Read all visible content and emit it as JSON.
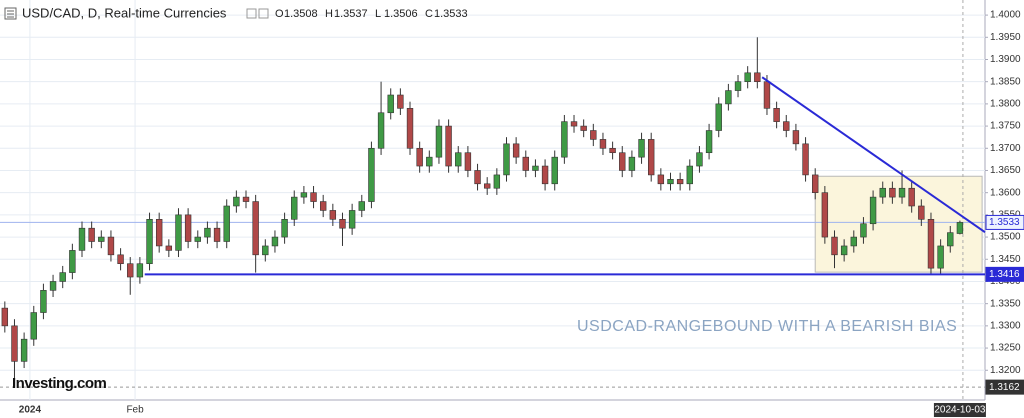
{
  "chart_data": {
    "type": "candlestick",
    "title": "USD/CAD, D, Real-time Currencies",
    "ohlc_labels": [
      "O",
      "H",
      "L",
      "C"
    ],
    "annotation": "USDCAD-RANGEBOUND WITH A BEARISH BIAS",
    "logo": "Investing.com",
    "last_date": "2024-10-03",
    "up_color": "#3f9a45",
    "down_color": "#b04848",
    "open": [
      1.334,
      1.33,
      1.322,
      1.327,
      1.333,
      1.338,
      1.34,
      1.342,
      1.347,
      1.352,
      1.349,
      1.35,
      1.346,
      1.344,
      1.341,
      1.344,
      1.354,
      1.348,
      1.347,
      1.355,
      1.349,
      1.35,
      1.352,
      1.349,
      1.357,
      1.359,
      1.358,
      1.346,
      1.348,
      1.35,
      1.354,
      1.359,
      1.36,
      1.358,
      1.356,
      1.354,
      1.352,
      1.356,
      1.358,
      1.37,
      1.378,
      1.382,
      1.379,
      1.37,
      1.366,
      1.368,
      1.375,
      1.366,
      1.369,
      1.365,
      1.362,
      1.361,
      1.364,
      1.371,
      1.368,
      1.365,
      1.366,
      1.362,
      1.368,
      1.376,
      1.375,
      1.374,
      1.372,
      1.37,
      1.369,
      1.365,
      1.368,
      1.372,
      1.364,
      1.362,
      1.363,
      1.362,
      1.366,
      1.369,
      1.374,
      1.38,
      1.383,
      1.385,
      1.387,
      1.385,
      1.379,
      1.376,
      1.374,
      1.371,
      1.364,
      1.36,
      1.35,
      1.346,
      1.348,
      1.35,
      1.353,
      1.359,
      1.361,
      1.359,
      1.361,
      1.357,
      1.354,
      1.343,
      1.348,
      1.3508
    ],
    "high": [
      1.3355,
      1.3315,
      1.3285,
      1.3345,
      1.3395,
      1.3415,
      1.3435,
      1.3485,
      1.3535,
      1.3535,
      1.3515,
      1.3515,
      1.3475,
      1.3455,
      1.3455,
      1.3555,
      1.3555,
      1.3495,
      1.3565,
      1.3565,
      1.3515,
      1.3535,
      1.3535,
      1.3585,
      1.3605,
      1.3605,
      1.3595,
      1.3495,
      1.3515,
      1.3555,
      1.3605,
      1.3615,
      1.3615,
      1.3595,
      1.3575,
      1.3555,
      1.3575,
      1.3595,
      1.3715,
      1.385,
      1.3835,
      1.3835,
      1.3805,
      1.3715,
      1.3695,
      1.3765,
      1.3765,
      1.3705,
      1.3705,
      1.3665,
      1.3635,
      1.3655,
      1.3725,
      1.3725,
      1.3695,
      1.3675,
      1.3675,
      1.3695,
      1.3775,
      1.3775,
      1.3765,
      1.3755,
      1.3735,
      1.3715,
      1.3705,
      1.3695,
      1.3735,
      1.3735,
      1.3655,
      1.3645,
      1.3645,
      1.3675,
      1.3705,
      1.3755,
      1.3815,
      1.3845,
      1.3865,
      1.3885,
      1.395,
      1.3865,
      1.3805,
      1.3775,
      1.3755,
      1.3725,
      1.3655,
      1.3615,
      1.3515,
      1.3495,
      1.3515,
      1.3545,
      1.3605,
      1.3625,
      1.3625,
      1.365,
      1.3625,
      1.3585,
      1.3555,
      1.3495,
      1.3525,
      1.3537
    ],
    "low": [
      1.3285,
      1.318,
      1.3205,
      1.3255,
      1.3315,
      1.3365,
      1.3385,
      1.3405,
      1.3455,
      1.3475,
      1.3475,
      1.3445,
      1.3425,
      1.337,
      1.3395,
      1.3425,
      1.3465,
      1.3455,
      1.3455,
      1.3475,
      1.3475,
      1.3485,
      1.3475,
      1.3475,
      1.3555,
      1.3565,
      1.342,
      1.3445,
      1.3465,
      1.3485,
      1.3525,
      1.3575,
      1.3565,
      1.3545,
      1.3525,
      1.348,
      1.3505,
      1.3545,
      1.3565,
      1.3685,
      1.3765,
      1.3775,
      1.3685,
      1.3645,
      1.3645,
      1.3665,
      1.3645,
      1.3645,
      1.3635,
      1.3605,
      1.3595,
      1.3595,
      1.3625,
      1.3665,
      1.3635,
      1.3635,
      1.3605,
      1.3605,
      1.3665,
      1.3735,
      1.3725,
      1.3705,
      1.3685,
      1.3675,
      1.3635,
      1.3635,
      1.3665,
      1.3625,
      1.3605,
      1.3605,
      1.3605,
      1.3605,
      1.3645,
      1.3675,
      1.3725,
      1.3785,
      1.3815,
      1.3835,
      1.3835,
      1.3775,
      1.3745,
      1.3725,
      1.3695,
      1.3625,
      1.3585,
      1.3485,
      1.343,
      1.3445,
      1.3465,
      1.3485,
      1.3515,
      1.3575,
      1.3575,
      1.3575,
      1.3555,
      1.3525,
      1.3415,
      1.3415,
      1.3465,
      1.3506
    ],
    "close": [
      1.33,
      1.322,
      1.327,
      1.333,
      1.338,
      1.34,
      1.342,
      1.347,
      1.352,
      1.349,
      1.35,
      1.346,
      1.344,
      1.341,
      1.344,
      1.354,
      1.348,
      1.347,
      1.355,
      1.349,
      1.35,
      1.352,
      1.349,
      1.357,
      1.359,
      1.358,
      1.346,
      1.348,
      1.35,
      1.354,
      1.359,
      1.36,
      1.358,
      1.356,
      1.354,
      1.352,
      1.356,
      1.358,
      1.37,
      1.378,
      1.382,
      1.379,
      1.37,
      1.366,
      1.368,
      1.375,
      1.366,
      1.369,
      1.365,
      1.362,
      1.361,
      1.364,
      1.371,
      1.368,
      1.365,
      1.366,
      1.362,
      1.368,
      1.376,
      1.375,
      1.374,
      1.372,
      1.37,
      1.369,
      1.365,
      1.368,
      1.372,
      1.364,
      1.362,
      1.363,
      1.362,
      1.366,
      1.369,
      1.374,
      1.38,
      1.383,
      1.385,
      1.387,
      1.385,
      1.379,
      1.376,
      1.374,
      1.371,
      1.364,
      1.36,
      1.35,
      1.346,
      1.348,
      1.35,
      1.353,
      1.359,
      1.361,
      1.359,
      1.361,
      1.357,
      1.354,
      1.343,
      1.348,
      1.351,
      1.3533
    ],
    "support_level": 1.3416,
    "support_start": 14.5,
    "low_marker": 1.3162,
    "trendline": [
      [
        78.5,
        1.386
      ],
      [
        101.6,
        1.3511
      ]
    ],
    "range_box": {
      "x": [
        84,
        101.3
      ],
      "y": [
        1.3421,
        1.3637
      ]
    },
    "xlim": [
      -0.5,
      101.6
    ],
    "xticks": [
      {
        "value": 2.6,
        "label": "2024"
      },
      {
        "value": 13.5,
        "label": "Feb"
      }
    ],
    "ylim": [
      1.3133,
      1.4034
    ],
    "yticks": [
      {
        "value": 1.32,
        "label": "1.3200"
      },
      {
        "value": 1.325,
        "label": "1.3250"
      },
      {
        "value": 1.33,
        "label": "1.3300"
      },
      {
        "value": 1.335,
        "label": "1.3350"
      },
      {
        "value": 1.34,
        "label": "1.3400"
      },
      {
        "value": 1.345,
        "label": "1.3450"
      },
      {
        "value": 1.35,
        "label": "1.3500"
      },
      {
        "value": 1.355,
        "label": "1.3550"
      },
      {
        "value": 1.36,
        "label": "1.3600"
      },
      {
        "value": 1.365,
        "label": "1.3650"
      },
      {
        "value": 1.37,
        "label": "1.3700"
      },
      {
        "value": 1.375,
        "label": "1.3750"
      },
      {
        "value": 1.38,
        "label": "1.3800"
      },
      {
        "value": 1.385,
        "label": "1.3850"
      },
      {
        "value": 1.39,
        "label": "1.3900"
      },
      {
        "value": 1.395,
        "label": "1.3950"
      },
      {
        "value": 1.4,
        "label": "1.4000"
      }
    ],
    "grid": true
  }
}
